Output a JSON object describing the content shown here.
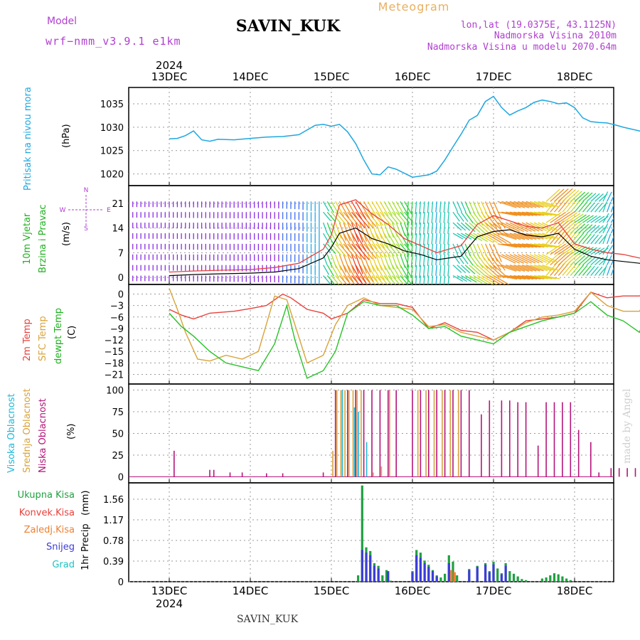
{
  "header": {
    "model_label": "Model",
    "model_value": "wrf−nmm_v3.9.1  e1km",
    "station": "SAVIN_KUK",
    "product": "Meteogram",
    "lonlat": "lon,lat (19.0375E, 43.1125N)",
    "elevation": "Nadmorska Visina 2010m",
    "model_elevation": "Nadmorska Visina u modelu 2070.64m",
    "year_top": "2024",
    "year_bottom": "2024",
    "footer_station": "SAVIN_KUK",
    "watermark": "made by Angel"
  },
  "colors": {
    "pressure": "#1fa7e0",
    "temp2m": "#e8413c",
    "sfc": "#d9a33a",
    "dewpt": "#27c227",
    "high_cloud": "#20b8d8",
    "mid_cloud": "#d9a33a",
    "low_cloud": "#b5147a",
    "total_precip": "#20a040",
    "conv_precip": "#e8413c",
    "frozen_precip": "#ef7f30",
    "snow": "#3c3cd8",
    "hail": "#20c0c0",
    "purple_text": "#b040d0",
    "orange_text": "#e8b060"
  },
  "chart_data": [
    {
      "type": "line",
      "panel": "pressure",
      "ylabel_1": "Pritisak na nivou mora",
      "ylabel_2": "(hPa)",
      "yticks": [
        1020,
        1025,
        1030,
        1035
      ],
      "ylim": [
        1017.5,
        1038.5
      ],
      "x_dates": [
        "13DEC",
        "14DEC",
        "15DEC",
        "16DEC",
        "17DEC",
        "18DEC"
      ],
      "x": [
        0,
        0.1,
        0.2,
        0.3,
        0.4,
        0.5,
        0.6,
        0.8,
        1.0,
        1.2,
        1.4,
        1.6,
        1.8,
        1.9,
        2.0,
        2.1,
        2.2,
        2.3,
        2.4,
        2.5,
        2.6,
        2.7,
        2.8,
        3.0,
        3.2,
        3.3,
        3.4,
        3.5,
        3.6,
        3.7,
        3.8,
        3.9,
        4.0,
        4.1,
        4.2,
        4.3,
        4.4,
        4.5,
        4.6,
        4.7,
        4.8,
        4.9,
        5.0,
        5.1,
        5.2,
        5.3,
        5.4,
        5.5,
        5.6,
        5.7,
        5.8,
        5.9,
        6.0
      ],
      "y": [
        1027.5,
        1027.6,
        1028.2,
        1029.2,
        1027.3,
        1027.0,
        1027.4,
        1027.3,
        1027.6,
        1027.9,
        1028.0,
        1028.4,
        1030.4,
        1030.6,
        1030.2,
        1030.6,
        1029.0,
        1026.5,
        1023.0,
        1020.0,
        1019.8,
        1021.5,
        1021.0,
        1019.3,
        1019.8,
        1020.6,
        1023.0,
        1025.8,
        1028.5,
        1031.5,
        1032.5,
        1035.5,
        1036.6,
        1034.2,
        1032.6,
        1033.5,
        1034.2,
        1035.3,
        1035.8,
        1035.5,
        1035.0,
        1035.2,
        1034.2,
        1032.0,
        1031.2,
        1031.0,
        1030.9,
        1030.5,
        1030.0,
        1029.6,
        1029.2,
        1028.4,
        1027.0
      ]
    },
    {
      "type": "line",
      "panel": "wind",
      "ylabel_1": "10m Vjetar",
      "ylabel_2": "Brzina i Pravac",
      "ylabel_3": "(m/s)",
      "compass": [
        "N",
        "E",
        "S",
        "W"
      ],
      "yticks": [
        0,
        7,
        14,
        21
      ],
      "ylim": [
        -2,
        26
      ],
      "x": [
        0,
        0.3,
        0.6,
        1.0,
        1.3,
        1.6,
        1.9,
        2.0,
        2.1,
        2.3,
        2.5,
        2.7,
        2.9,
        3.1,
        3.3,
        3.6,
        3.8,
        4.0,
        4.2,
        4.4,
        4.6,
        4.8,
        5.0,
        5.2,
        5.4,
        5.6,
        5.8,
        6.0
      ],
      "y": [
        0.5,
        0.8,
        1.0,
        1.2,
        1.5,
        2.5,
        5.5,
        8.5,
        12.5,
        14.0,
        11.0,
        9.5,
        7.5,
        6.5,
        5.0,
        6.0,
        11.5,
        13.0,
        13.5,
        12.0,
        11.5,
        12.5,
        8.0,
        6.0,
        5.0,
        4.5,
        4.0,
        3.0
      ],
      "y_gust": [
        1.5,
        1.8,
        2.0,
        2.2,
        2.8,
        4.0,
        8.0,
        12.0,
        20.5,
        22.0,
        18.0,
        15.0,
        11.0,
        9.0,
        7.0,
        9.0,
        15.0,
        17.5,
        16.0,
        14.5,
        14.0,
        15.5,
        9.5,
        8.0,
        7.0,
        6.5,
        5.5,
        4.5
      ]
    },
    {
      "type": "line",
      "panel": "temperature",
      "ylabel_1": "2m Temp",
      "ylabel_2": "SFC Temp",
      "ylabel_3": "dewpt Temp",
      "ylabel_4": "(C)",
      "yticks": [
        0,
        -3,
        -6,
        -9,
        -12,
        -15,
        -18,
        -21
      ],
      "ylim": [
        -23.5,
        2.5
      ],
      "series": [
        {
          "name": "2m Temp",
          "x": [
            0,
            0.15,
            0.3,
            0.5,
            0.8,
            1.0,
            1.2,
            1.4,
            1.5,
            1.7,
            1.9,
            2.0,
            2.2,
            2.4,
            2.6,
            2.8,
            3.0,
            3.2,
            3.4,
            3.6,
            3.8,
            4.0,
            4.2,
            4.4,
            4.6,
            4.8,
            5.0,
            5.2,
            5.4,
            5.6,
            5.8,
            5.95,
            6.0
          ],
          "y": [
            -4,
            -5.5,
            -6.5,
            -5.0,
            -4.5,
            -3.8,
            -3.0,
            0.0,
            -1.0,
            -4.0,
            -5.0,
            -6.5,
            -5.0,
            -1.5,
            -2.5,
            -2.5,
            -3.5,
            -9.0,
            -7.5,
            -9.5,
            -10.0,
            -12.0,
            -10.0,
            -7.0,
            -6.5,
            -6.0,
            -5.0,
            0.5,
            -1.0,
            -0.5,
            -0.5,
            1.0,
            1.2
          ]
        },
        {
          "name": "SFC Temp",
          "x": [
            0,
            0.1,
            0.2,
            0.35,
            0.5,
            0.7,
            0.9,
            1.1,
            1.3,
            1.45,
            1.55,
            1.7,
            1.9,
            2.05,
            2.2,
            2.4,
            2.6,
            2.8,
            3.0,
            3.2,
            3.4,
            3.6,
            3.8,
            4.0,
            4.2,
            4.4,
            4.6,
            4.8,
            5.0,
            5.2,
            5.4,
            5.6,
            5.8,
            5.95,
            6.0
          ],
          "y": [
            1.5,
            -4.0,
            -10.0,
            -17.0,
            -17.5,
            -16.0,
            -17.0,
            -15.0,
            -0.5,
            -1.5,
            -8.0,
            -18.0,
            -16.0,
            -8.0,
            -3.0,
            -1.0,
            -3.0,
            -3.5,
            -4.0,
            -8.5,
            -8.0,
            -10.0,
            -11.0,
            -12.0,
            -10.0,
            -7.5,
            -6.0,
            -5.5,
            -4.5,
            0.5,
            -3.0,
            -4.5,
            -4.5,
            0.5,
            0.5
          ]
        },
        {
          "name": "dewpt Temp",
          "x": [
            0,
            0.15,
            0.3,
            0.5,
            0.7,
            0.9,
            1.1,
            1.3,
            1.45,
            1.55,
            1.7,
            1.9,
            2.05,
            2.2,
            2.4,
            2.6,
            2.8,
            3.0,
            3.2,
            3.4,
            3.6,
            3.8,
            4.0,
            4.2,
            4.4,
            4.6,
            4.8,
            5.0,
            5.2,
            5.4,
            5.6,
            5.8,
            5.95,
            6.0
          ],
          "y": [
            -5.0,
            -8.5,
            -11.0,
            -15.0,
            -18.0,
            -19.0,
            -20.0,
            -13.0,
            -3.0,
            -12.0,
            -22.0,
            -20.0,
            -15.0,
            -5.0,
            -2.0,
            -3.0,
            -3.0,
            -5.5,
            -9.0,
            -8.5,
            -11.0,
            -12.0,
            -13.0,
            -10.0,
            -8.5,
            -7.0,
            -6.0,
            -5.0,
            -2.0,
            -5.5,
            -7.0,
            -10.0,
            -2.0,
            -4.0
          ]
        }
      ]
    },
    {
      "type": "bar",
      "panel": "clouds",
      "ylabel_1": "Visoka Oblacnost",
      "ylabel_2": "Srednja Oblacnost",
      "ylabel_3": "Niska Oblacnost",
      "ylabel_4": "(%)",
      "yticks": [
        0,
        25,
        50,
        75,
        100
      ],
      "ylim": [
        -7,
        107
      ],
      "series": [
        {
          "name": "Niska Oblacnost",
          "x": [
            0.06,
            0.5,
            0.55,
            0.75,
            0.9,
            1.2,
            1.4,
            1.9,
            2.05,
            2.2,
            2.3,
            2.4,
            2.5,
            2.6,
            2.7,
            2.8,
            3.0,
            3.1,
            3.2,
            3.3,
            3.4,
            3.5,
            3.6,
            3.7,
            3.85,
            3.95,
            4.1,
            4.2,
            4.3,
            4.4,
            4.55,
            4.65,
            4.75,
            4.85,
            4.95,
            5.05,
            5.2,
            5.3,
            5.45,
            5.55,
            5.65,
            5.75,
            5.85,
            5.95
          ],
          "y": [
            30,
            8,
            8,
            5,
            5,
            4,
            4,
            5,
            100,
            100,
            100,
            100,
            100,
            100,
            100,
            100,
            100,
            100,
            100,
            100,
            100,
            100,
            100,
            100,
            72,
            88,
            88,
            88,
            86,
            86,
            36,
            86,
            86,
            86,
            86,
            54,
            40,
            5,
            10,
            10,
            10,
            10,
            10,
            10
          ]
        },
        {
          "name": "Srednja Oblacnost",
          "x": [
            2.0,
            2.05,
            2.1,
            2.15,
            2.2,
            2.25,
            2.3,
            2.35,
            2.5,
            2.6,
            2.7,
            3.05,
            3.15,
            3.25,
            3.35,
            3.45,
            3.55
          ],
          "y": [
            30,
            100,
            100,
            100,
            100,
            100,
            100,
            100,
            5,
            12,
            100,
            100,
            100,
            100,
            100,
            100,
            100
          ]
        },
        {
          "name": "Visoka Oblacnost",
          "x": [
            2.1,
            2.25,
            2.3,
            2.4
          ],
          "y": [
            100,
            80,
            75,
            40
          ]
        }
      ]
    },
    {
      "type": "bar",
      "panel": "precip",
      "legend": [
        "Ukupna Kisa",
        "Konvek.Kisa",
        "Zaledj.Kisa",
        "Snijeg",
        "Grad"
      ],
      "ylabel_1": "1hr Precip",
      "ylabel_2": "(mm)",
      "yticks": [
        0,
        0.39,
        0.78,
        1.17,
        1.56
      ],
      "ylim": [
        0,
        1.87
      ],
      "x_dates": [
        "13DEC",
        "14DEC",
        "15DEC",
        "16DEC",
        "17DEC",
        "18DEC"
      ],
      "series": [
        {
          "name": "Ukupna Kisa",
          "x": [
            2.33,
            2.38,
            2.43,
            2.48,
            2.53,
            2.58,
            2.63,
            2.68,
            2.73,
            3.0,
            3.05,
            3.1,
            3.15,
            3.2,
            3.25,
            3.3,
            3.35,
            3.4,
            3.45,
            3.5,
            3.55,
            3.7,
            3.8,
            3.9,
            3.95,
            4.0,
            4.05,
            4.1,
            4.15,
            4.2,
            4.25,
            4.3,
            4.35,
            4.4,
            4.6,
            4.65,
            4.7,
            4.75,
            4.8,
            4.85,
            4.9,
            4.95
          ],
          "y": [
            0.12,
            1.82,
            0.65,
            0.58,
            0.35,
            0.3,
            0.12,
            0.22,
            0.02,
            0.2,
            0.6,
            0.55,
            0.4,
            0.32,
            0.22,
            0.12,
            0.08,
            0.15,
            0.5,
            0.38,
            0.12,
            0.24,
            0.3,
            0.35,
            0.2,
            0.38,
            0.25,
            0.16,
            0.35,
            0.2,
            0.15,
            0.1,
            0.05,
            0.03,
            0.06,
            0.08,
            0.12,
            0.16,
            0.14,
            0.1,
            0.06,
            0.03
          ]
        },
        {
          "name": "Snijeg",
          "x": [
            2.38,
            2.43,
            2.48,
            2.53,
            2.58,
            2.7,
            3.0,
            3.05,
            3.1,
            3.15,
            3.2,
            3.25,
            3.3,
            3.45,
            3.7,
            3.8,
            3.9,
            3.95,
            4.0,
            4.1,
            4.15
          ],
          "y": [
            0.6,
            0.55,
            0.5,
            0.3,
            0.25,
            0.2,
            0.18,
            0.5,
            0.45,
            0.35,
            0.28,
            0.2,
            0.1,
            0.35,
            0.22,
            0.28,
            0.32,
            0.18,
            0.33,
            0.14,
            0.3
          ]
        },
        {
          "name": "Zaledj.Kisa",
          "x": [
            3.48,
            3.52
          ],
          "y": [
            0.22,
            0.18
          ]
        }
      ]
    }
  ]
}
